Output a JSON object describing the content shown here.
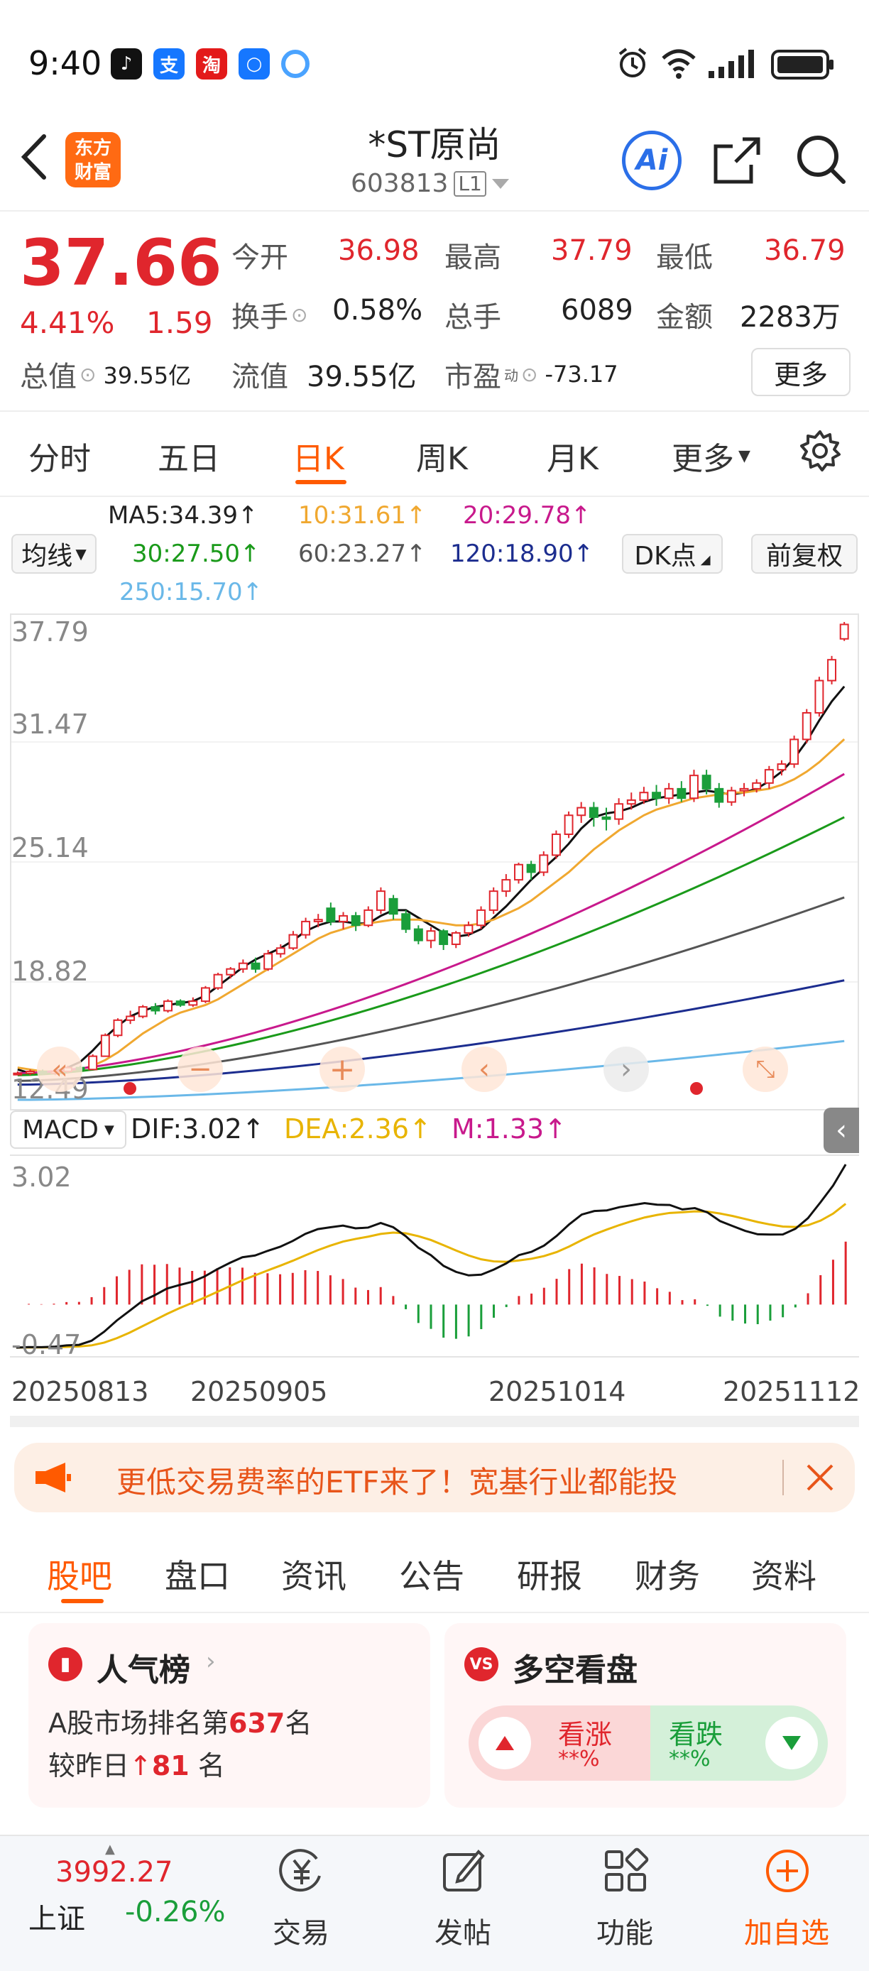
{
  "status_bar": {
    "time": "9:40"
  },
  "header": {
    "logo_line1": "东方",
    "logo_line2": "财富",
    "title": "*ST原尚",
    "code": "603813",
    "level": "L1",
    "ai_label": "Ai"
  },
  "quote": {
    "price": "37.66",
    "change_pct": "4.41%",
    "change": "1.59",
    "open_label": "今开",
    "open": "36.98",
    "high_label": "最高",
    "high": "37.79",
    "low_label": "最低",
    "low": "36.79",
    "turnover_label": "换手",
    "turnover": "0.58%",
    "volume_label": "总手",
    "volume": "6089",
    "amount_label": "金额",
    "amount": "2283万",
    "total_mv_label": "总值",
    "total_mv": "39.55亿",
    "float_mv_label": "流值",
    "float_mv": "39.55亿",
    "pe_label": "市盈",
    "pe_sup": "动",
    "pe": "-73.17",
    "more": "更多"
  },
  "period_tabs": [
    {
      "label": "分时"
    },
    {
      "label": "五日"
    },
    {
      "label": "日K"
    },
    {
      "label": "周K"
    },
    {
      "label": "月K"
    },
    {
      "label": "更多"
    }
  ],
  "ma_legend": {
    "ma5": "MA5:34.39↑",
    "ma10": "10:31.61↑",
    "ma20": "20:29.78↑",
    "ma30": "30:27.50↑",
    "ma60": "60:23.27↑",
    "ma120": "120:18.90↑",
    "ma250": "250:15.70↑",
    "select_label": "均线",
    "dk_label": "DK点",
    "adjust_label": "前复权"
  },
  "colors": {
    "up": "#e0262d",
    "down": "#1a9e3a",
    "ma5": "#111111",
    "ma10": "#f0a830",
    "ma20": "#c8198c",
    "ma30": "#1a9a1a",
    "ma60": "#555555",
    "ma120": "#1c2d8f",
    "ma250": "#6ab8e8",
    "dea": "#e8b400",
    "accent": "#ff5a00"
  },
  "kline_axis": [
    "37.79",
    "31.47",
    "25.14",
    "18.82",
    "12.49"
  ],
  "macd": {
    "select_label": "MACD",
    "dif": "DIF:3.02↑",
    "dea": "DEA:2.36↑",
    "m": "M:1.33↑",
    "axis_top": "3.02",
    "axis_bottom": "-0.47"
  },
  "date_axis": [
    "20250813",
    "20250905",
    "20251014",
    "20251112"
  ],
  "chart_data": {
    "type": "candlestick",
    "y_range": [
      12.49,
      37.79
    ],
    "candles": [
      [
        14.0,
        14.0,
        14.1,
        13.9
      ],
      [
        14.0,
        14.1,
        14.2,
        13.9
      ],
      [
        14.1,
        14.0,
        14.2,
        13.9
      ],
      [
        14.0,
        14.1,
        14.2,
        13.9
      ],
      [
        14.1,
        14.3,
        14.4,
        14.0
      ],
      [
        14.3,
        14.2,
        14.4,
        14.1
      ],
      [
        14.2,
        14.9,
        15.0,
        14.2
      ],
      [
        14.9,
        16.0,
        16.1,
        14.9
      ],
      [
        16.0,
        16.8,
        16.9,
        15.9
      ],
      [
        16.8,
        17.0,
        17.3,
        16.6
      ],
      [
        17.0,
        17.5,
        17.6,
        16.9
      ],
      [
        17.5,
        17.3,
        17.7,
        17.1
      ],
      [
        17.3,
        17.8,
        17.9,
        17.2
      ],
      [
        17.8,
        17.6,
        17.9,
        17.5
      ],
      [
        17.6,
        17.8,
        18.0,
        17.5
      ],
      [
        17.8,
        18.5,
        18.6,
        17.7
      ],
      [
        18.5,
        19.2,
        19.3,
        18.4
      ],
      [
        19.2,
        19.5,
        19.6,
        19.0
      ],
      [
        19.5,
        19.8,
        20.0,
        19.3
      ],
      [
        19.8,
        19.5,
        20.1,
        19.3
      ],
      [
        19.5,
        20.3,
        20.5,
        19.4
      ],
      [
        20.3,
        20.6,
        20.8,
        20.1
      ],
      [
        20.6,
        21.3,
        21.5,
        20.5
      ],
      [
        21.3,
        22.0,
        22.2,
        21.1
      ],
      [
        22.0,
        22.1,
        22.4,
        21.7
      ],
      [
        22.7,
        22.0,
        23.0,
        21.8
      ],
      [
        22.0,
        22.3,
        22.5,
        21.6
      ],
      [
        22.3,
        21.8,
        22.5,
        21.5
      ],
      [
        21.8,
        22.6,
        22.8,
        21.7
      ],
      [
        22.6,
        23.6,
        23.8,
        22.4
      ],
      [
        23.2,
        22.4,
        23.4,
        22.1
      ],
      [
        22.4,
        21.6,
        22.6,
        21.4
      ],
      [
        21.6,
        21.0,
        21.8,
        20.8
      ],
      [
        21.0,
        21.5,
        21.7,
        20.6
      ],
      [
        21.5,
        20.8,
        21.6,
        20.5
      ],
      [
        20.8,
        21.4,
        21.5,
        20.6
      ],
      [
        21.4,
        21.8,
        22.0,
        21.2
      ],
      [
        21.8,
        22.6,
        22.8,
        21.6
      ],
      [
        22.6,
        23.6,
        23.8,
        22.4
      ],
      [
        23.6,
        24.2,
        24.5,
        23.3
      ],
      [
        24.2,
        25.0,
        25.1,
        24.0
      ],
      [
        25.0,
        24.6,
        25.2,
        24.2
      ],
      [
        24.6,
        25.5,
        25.7,
        24.4
      ],
      [
        25.5,
        26.6,
        26.8,
        25.3
      ],
      [
        26.6,
        27.6,
        27.8,
        26.4
      ],
      [
        27.6,
        28.0,
        28.3,
        27.2
      ],
      [
        28.0,
        27.5,
        28.3,
        27.0
      ],
      [
        27.5,
        27.4,
        28.0,
        26.8
      ],
      [
        27.4,
        28.2,
        28.5,
        27.1
      ],
      [
        28.2,
        28.4,
        28.8,
        27.9
      ],
      [
        28.4,
        28.8,
        29.1,
        28.2
      ],
      [
        28.8,
        28.5,
        29.2,
        28.1
      ],
      [
        28.5,
        29.0,
        29.3,
        28.2
      ],
      [
        29.0,
        28.5,
        29.4,
        28.3
      ],
      [
        28.5,
        29.7,
        30.0,
        28.3
      ],
      [
        29.7,
        29.0,
        30.0,
        28.7
      ],
      [
        29.0,
        28.3,
        29.3,
        28.0
      ],
      [
        28.3,
        28.9,
        29.1,
        28.1
      ],
      [
        28.9,
        29.0,
        29.3,
        28.6
      ],
      [
        29.0,
        29.3,
        29.5,
        28.8
      ],
      [
        29.3,
        30.0,
        30.2,
        29.0
      ],
      [
        30.0,
        30.3,
        30.5,
        29.7
      ],
      [
        30.3,
        31.6,
        31.8,
        30.1
      ],
      [
        31.6,
        33.0,
        33.2,
        31.4
      ],
      [
        33.0,
        34.7,
        34.9,
        32.8
      ],
      [
        34.7,
        35.8,
        36.0,
        34.5
      ],
      [
        36.9,
        37.66,
        37.79,
        36.79
      ]
    ],
    "ma_lines": {
      "MA5": [
        14.2,
        14.0,
        14.0,
        14.1,
        14.3,
        14.6,
        15.2,
        15.9,
        16.5,
        17.0,
        17.3,
        17.5,
        17.6,
        17.7,
        17.8,
        18.1,
        18.6,
        19.1,
        19.6,
        20.0,
        20.3,
        20.6,
        21.0,
        21.5,
        21.8,
        22.0,
        22.0,
        21.9,
        21.9,
        22.3,
        22.6,
        22.6,
        22.2,
        21.8,
        21.4,
        21.2,
        21.3,
        21.6,
        22.2,
        22.8,
        23.5,
        24.2,
        24.8,
        25.4,
        26.1,
        26.9,
        27.5,
        27.7,
        27.8,
        28.0,
        28.3,
        28.5,
        28.6,
        28.7,
        28.8,
        28.9,
        28.8,
        28.7,
        28.8,
        29.0,
        29.4,
        29.9,
        30.6,
        31.5,
        32.6,
        33.6,
        34.39
      ],
      "MA10": [
        14.3,
        14.2,
        14.1,
        14.1,
        14.1,
        14.2,
        14.4,
        14.7,
        15.1,
        15.6,
        16.1,
        16.5,
        16.9,
        17.2,
        17.4,
        17.6,
        17.9,
        18.3,
        18.7,
        19.1,
        19.5,
        19.9,
        20.3,
        20.7,
        21.1,
        21.4,
        21.6,
        21.8,
        21.9,
        22.0,
        22.1,
        22.1,
        22.1,
        22.0,
        21.9,
        21.8,
        21.8,
        21.9,
        22.1,
        22.4,
        22.7,
        23.1,
        23.6,
        24.1,
        24.6,
        25.2,
        25.8,
        26.3,
        26.8,
        27.2,
        27.6,
        27.9,
        28.1,
        28.3,
        28.5,
        28.6,
        28.7,
        28.8,
        28.8,
        28.9,
        29.0,
        29.2,
        29.5,
        29.9,
        30.4,
        31.0,
        31.61
      ]
    },
    "macd_dif_range": [
      -0.47,
      3.02
    ]
  },
  "banner": {
    "text": "更低交易费率的ETF来了！宽基行业都能投"
  },
  "news_tabs": [
    {
      "label": "股吧"
    },
    {
      "label": "盘口"
    },
    {
      "label": "资讯"
    },
    {
      "label": "公告"
    },
    {
      "label": "研报"
    },
    {
      "label": "财务"
    },
    {
      "label": "资料"
    }
  ],
  "popularity": {
    "title": "人气榜",
    "line1_prefix": "A股市场排名第",
    "rank": "637",
    "line1_suffix": "名",
    "line2_prefix": "较昨日",
    "change": "81",
    "line2_suffix": " 名"
  },
  "sentiment": {
    "title": "多空看盘",
    "bull_label": "看涨",
    "bull_value": "**%",
    "bear_label": "看跌",
    "bear_value": "**%"
  },
  "bottom_bar": {
    "index_value": "3992.27",
    "index_name": "上证",
    "index_change": "-0.26%",
    "items": [
      {
        "label": "交易"
      },
      {
        "label": "发帖"
      },
      {
        "label": "功能"
      },
      {
        "label": "加自选"
      }
    ]
  }
}
